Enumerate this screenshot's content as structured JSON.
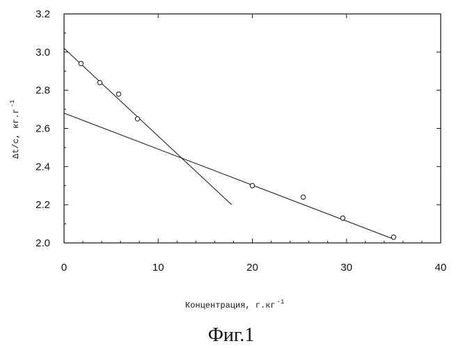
{
  "chart_data": {
    "type": "scatter",
    "title": "",
    "xlabel": "Концентрация, г.кг",
    "xlabel_sup": "-1",
    "ylabel": "Δt/c, кг.г",
    "ylabel_sup": "-1",
    "xlim": [
      0,
      40
    ],
    "ylim": [
      2.0,
      3.2
    ],
    "xticks": [
      "0",
      "10",
      "20",
      "30",
      "40"
    ],
    "yticks": [
      "2.0",
      "2.2",
      "2.4",
      "2.6",
      "2.8",
      "3.0",
      "3.2"
    ],
    "grid": false,
    "points": [
      {
        "x": 1.8,
        "y": 2.94
      },
      {
        "x": 3.8,
        "y": 2.84
      },
      {
        "x": 5.8,
        "y": 2.78
      },
      {
        "x": 7.8,
        "y": 2.65
      },
      {
        "x": 20.0,
        "y": 2.3
      },
      {
        "x": 25.4,
        "y": 2.24
      },
      {
        "x": 29.6,
        "y": 2.13
      },
      {
        "x": 35.0,
        "y": 2.03
      }
    ],
    "fit_lines": [
      {
        "x": [
          0,
          17.8
        ],
        "y": [
          3.02,
          2.2
        ]
      },
      {
        "x": [
          0,
          35.0
        ],
        "y": [
          2.68,
          2.02
        ]
      }
    ]
  },
  "caption": "Фиг.1"
}
